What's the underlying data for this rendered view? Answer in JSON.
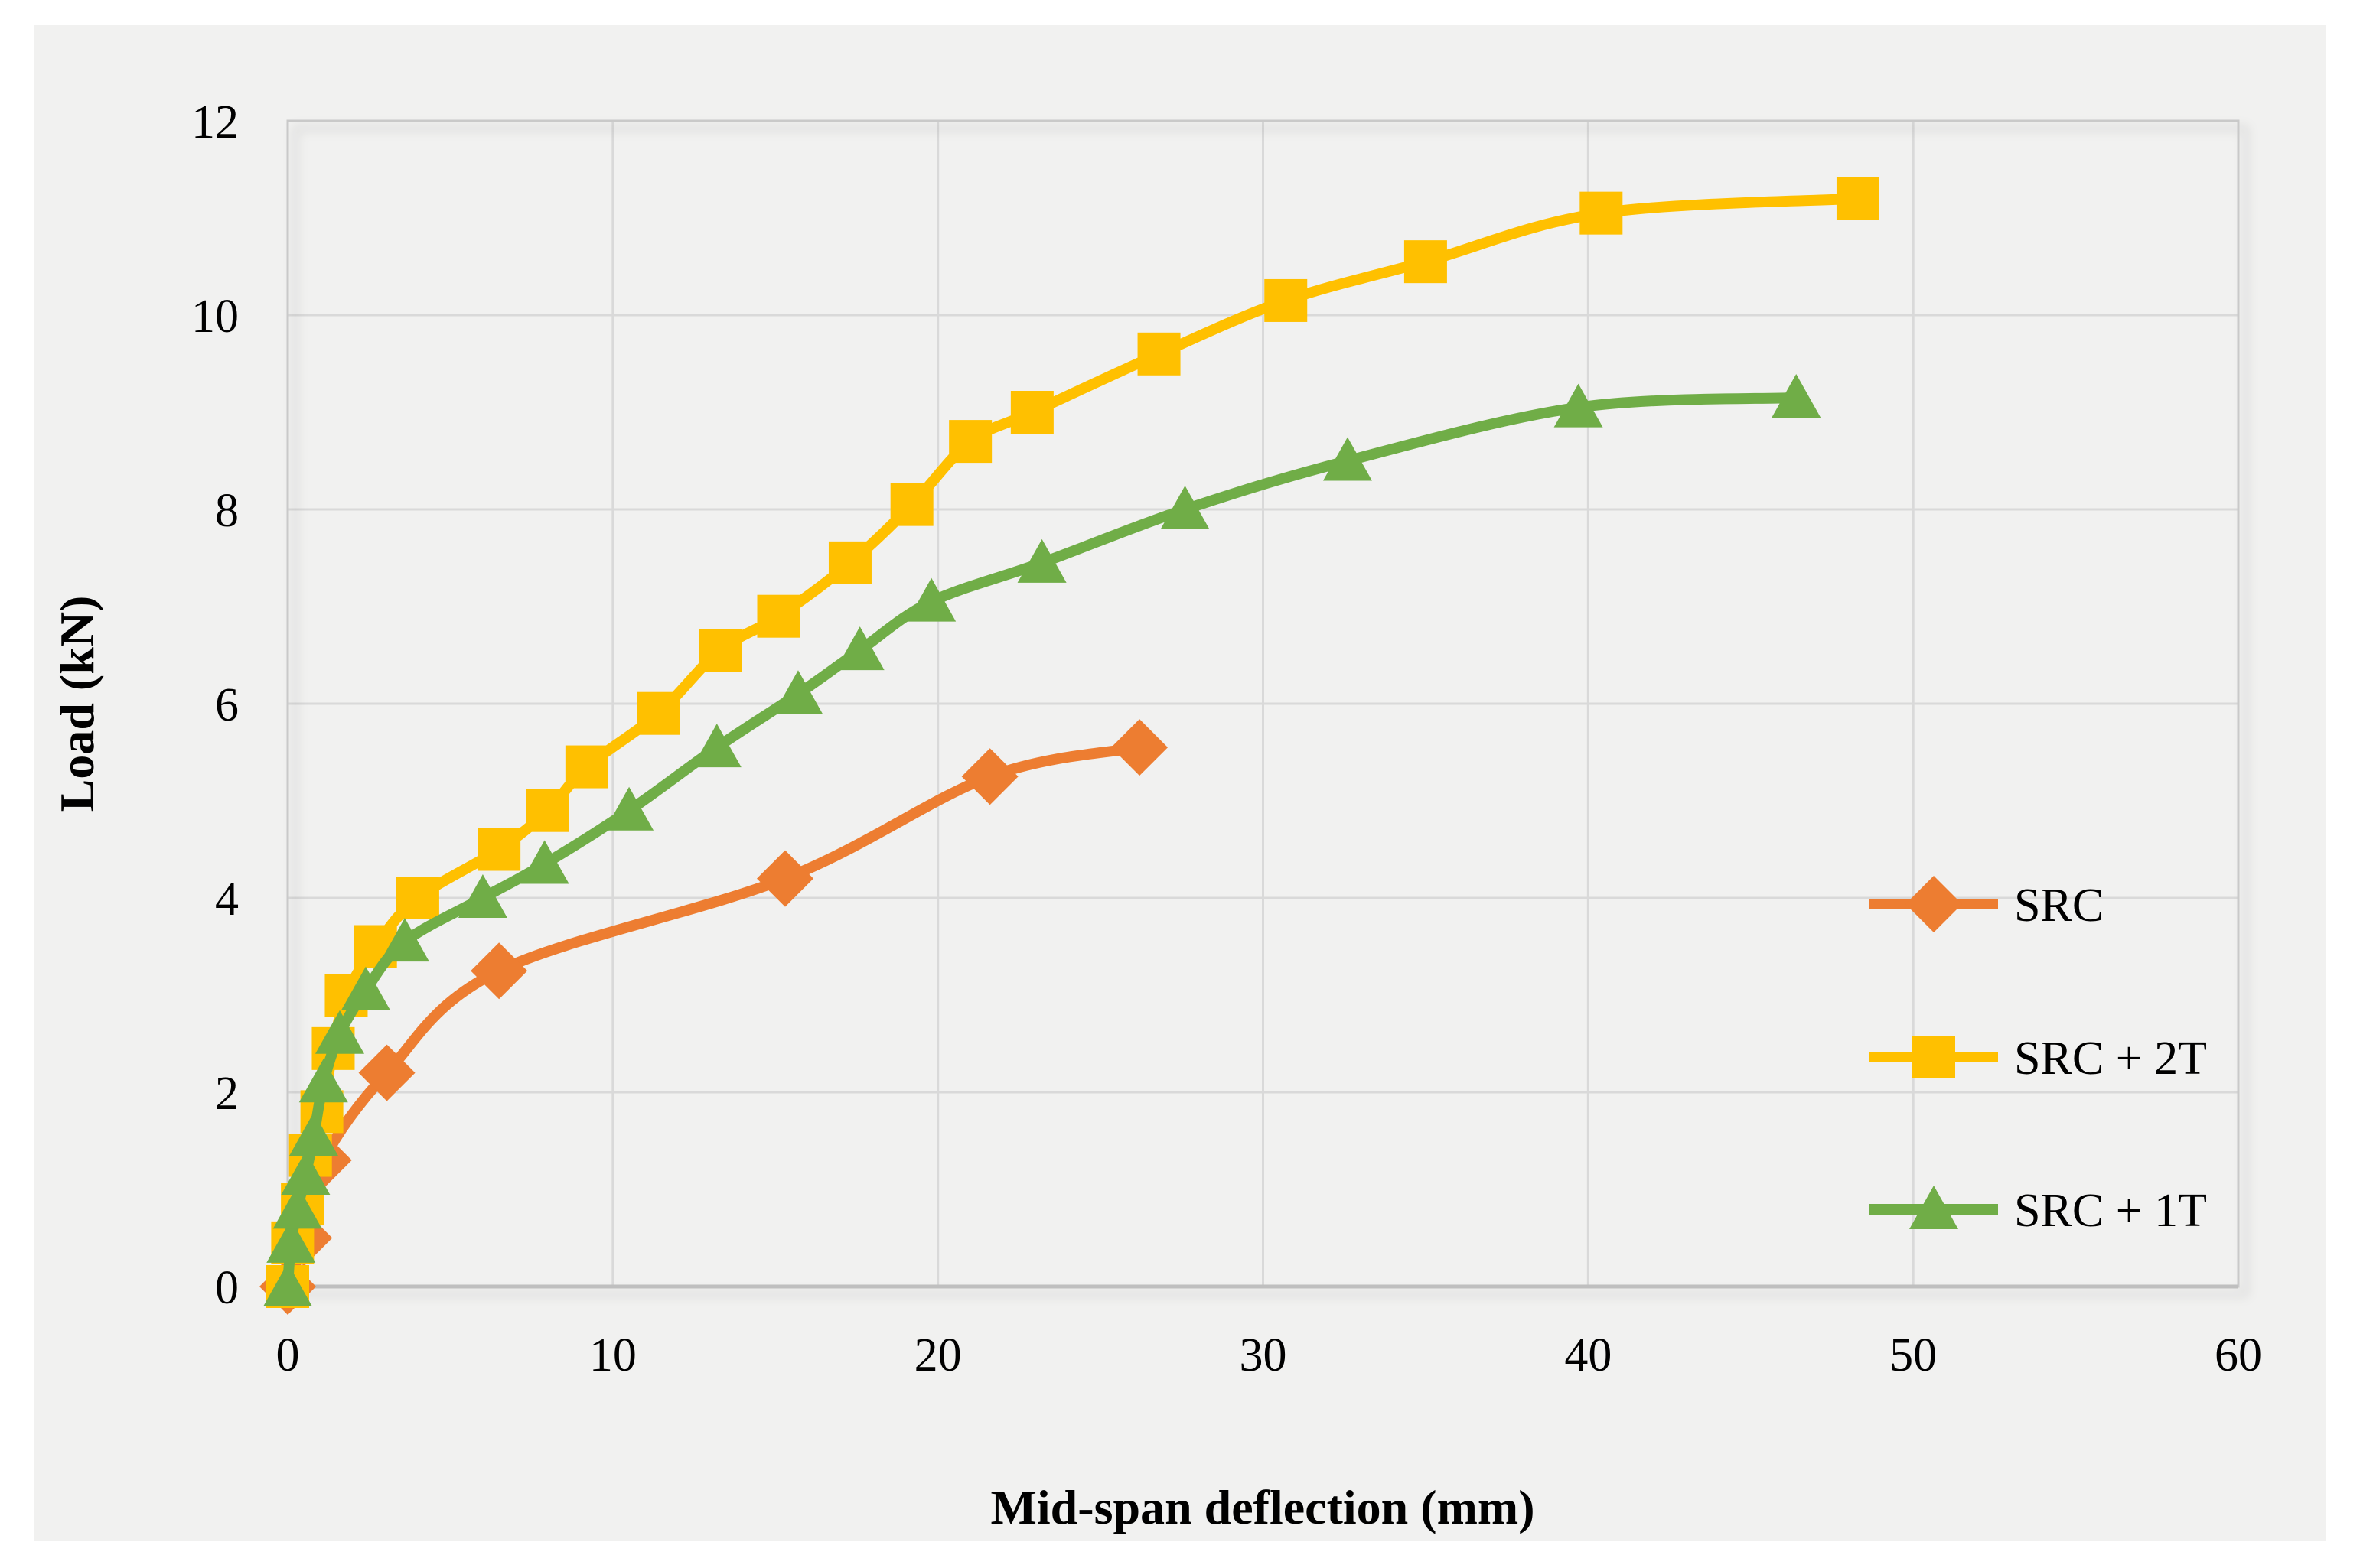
{
  "figure": {
    "background_color": "#ffffff",
    "chart_background_color": "#f1f1f0",
    "gridline_color": "#d9d9d9",
    "plot_border_color": "#c9c9c9",
    "axis_line_color": "#bfbfbf",
    "text_color": "#000000"
  },
  "chart_data": {
    "type": "line",
    "title": "",
    "xlabel": "Mid-span deflection (mm)",
    "ylabel": "Load (kN)",
    "xlim": [
      0,
      60
    ],
    "ylim": [
      0,
      12
    ],
    "x_ticks": [
      0,
      10,
      20,
      30,
      40,
      50,
      60
    ],
    "y_ticks": [
      0,
      2,
      4,
      6,
      8,
      10,
      12
    ],
    "grid": true,
    "legend_position": "middle-right",
    "series": [
      {
        "name": "SRC",
        "color": "#ED7D31",
        "marker": "diamond",
        "points": [
          [
            0,
            0
          ],
          [
            0.5,
            0.5
          ],
          [
            1.1,
            1.3
          ],
          [
            3.05,
            2.2
          ],
          [
            6.5,
            3.25
          ],
          [
            15.3,
            4.2
          ],
          [
            21.6,
            5.25
          ],
          [
            26.2,
            5.55
          ]
        ]
      },
      {
        "name": "SRC + 2T",
        "color": "#FFC000",
        "marker": "square",
        "points": [
          [
            0,
            0
          ],
          [
            0.15,
            0.45
          ],
          [
            0.45,
            0.85
          ],
          [
            0.7,
            1.35
          ],
          [
            1.05,
            1.8
          ],
          [
            1.4,
            2.45
          ],
          [
            1.8,
            3.0
          ],
          [
            2.7,
            3.5
          ],
          [
            4.0,
            4.0
          ],
          [
            6.5,
            4.5
          ],
          [
            8.0,
            4.9
          ],
          [
            9.2,
            5.35
          ],
          [
            11.4,
            5.9
          ],
          [
            13.3,
            6.55
          ],
          [
            15.1,
            6.9
          ],
          [
            17.3,
            7.45
          ],
          [
            19.2,
            8.05
          ],
          [
            21.0,
            8.7
          ],
          [
            22.9,
            9.0
          ],
          [
            26.8,
            9.6
          ],
          [
            30.7,
            10.15
          ],
          [
            35.0,
            10.55
          ],
          [
            40.4,
            11.05
          ],
          [
            48.3,
            11.2
          ]
        ]
      },
      {
        "name": "SRC + 1T",
        "color": "#70AD47",
        "marker": "triangle",
        "points": [
          [
            0,
            0
          ],
          [
            0.1,
            0.45
          ],
          [
            0.3,
            0.8
          ],
          [
            0.55,
            1.15
          ],
          [
            0.8,
            1.55
          ],
          [
            1.1,
            2.1
          ],
          [
            1.6,
            2.6
          ],
          [
            2.4,
            3.05
          ],
          [
            3.6,
            3.55
          ],
          [
            6.0,
            4.0
          ],
          [
            7.9,
            4.35
          ],
          [
            10.5,
            4.9
          ],
          [
            13.2,
            5.55
          ],
          [
            15.7,
            6.1
          ],
          [
            17.6,
            6.55
          ],
          [
            19.8,
            7.05
          ],
          [
            23.2,
            7.45
          ],
          [
            27.6,
            8.0
          ],
          [
            32.6,
            8.5
          ],
          [
            39.7,
            9.05
          ],
          [
            46.4,
            9.15
          ]
        ]
      }
    ]
  }
}
